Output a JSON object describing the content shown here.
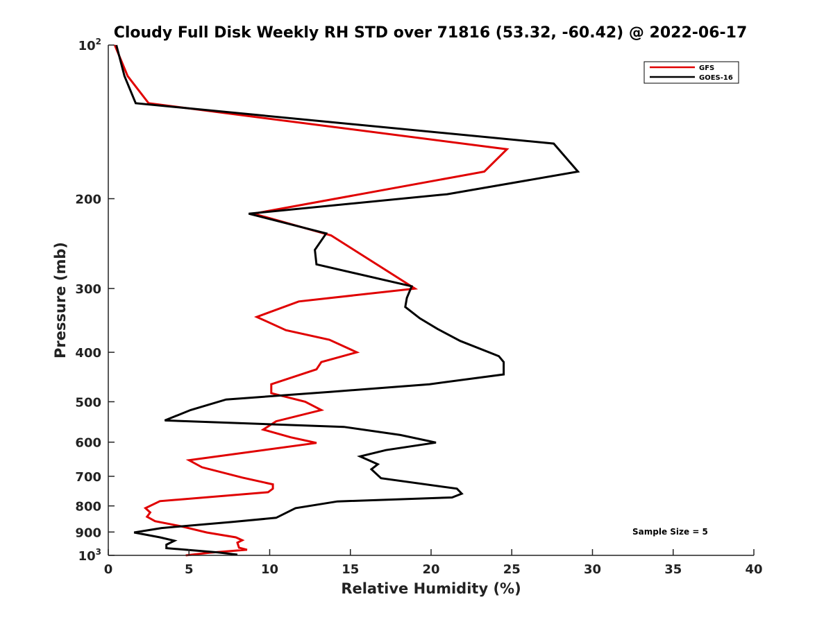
{
  "chart_data": {
    "type": "line",
    "title": "Cloudy Full Disk Weekly RH STD over 71816 (53.32, -60.42) @ 2022-06-17",
    "xlabel": "Relative Humidity (%)",
    "ylabel": "Pressure (mb)",
    "xlim": [
      0,
      40
    ],
    "ylim": [
      100,
      1000
    ],
    "y_scale": "log",
    "y_reversed": true,
    "x_ticks": [
      "0",
      "5",
      "10",
      "15",
      "20",
      "25",
      "30",
      "35",
      "40"
    ],
    "y_ticks": [
      {
        "value": 100,
        "base": "10",
        "exp": "2"
      },
      {
        "value": 200,
        "label": "200"
      },
      {
        "value": 300,
        "label": "300"
      },
      {
        "value": 400,
        "label": "400"
      },
      {
        "value": 500,
        "label": "500"
      },
      {
        "value": 600,
        "label": "600"
      },
      {
        "value": 700,
        "label": "700"
      },
      {
        "value": 800,
        "label": "800"
      },
      {
        "value": 900,
        "label": "900"
      },
      {
        "value": 1000,
        "base": "10",
        "exp": "3"
      }
    ],
    "legend_position": "top-right",
    "annotation": "Sample Size = 5",
    "grid": false,
    "series": [
      {
        "name": "GFS",
        "color": "#e00000",
        "points": [
          [
            0.4,
            100
          ],
          [
            1.2,
            115
          ],
          [
            2.5,
            130
          ],
          [
            24.7,
            160
          ],
          [
            23.3,
            177
          ],
          [
            9.0,
            214
          ],
          [
            13.8,
            236
          ],
          [
            19.0,
            300
          ],
          [
            11.8,
            318
          ],
          [
            9.2,
            341
          ],
          [
            11.0,
            362
          ],
          [
            13.7,
            378
          ],
          [
            15.4,
            400
          ],
          [
            13.2,
            418
          ],
          [
            12.9,
            432
          ],
          [
            10.1,
            462
          ],
          [
            10.1,
            481
          ],
          [
            12.2,
            500
          ],
          [
            13.2,
            519
          ],
          [
            10.4,
            546
          ],
          [
            9.6,
            567
          ],
          [
            11.3,
            587
          ],
          [
            12.9,
            602
          ],
          [
            5.0,
            651
          ],
          [
            5.8,
            672
          ],
          [
            8.3,
            704
          ],
          [
            10.2,
            726
          ],
          [
            10.2,
            740
          ],
          [
            9.9,
            752
          ],
          [
            3.2,
            783
          ],
          [
            2.3,
            808
          ],
          [
            2.6,
            824
          ],
          [
            2.4,
            840
          ],
          [
            2.9,
            857
          ],
          [
            4.5,
            877
          ],
          [
            6.1,
            902
          ],
          [
            7.9,
            922
          ],
          [
            8.3,
            934
          ],
          [
            8.0,
            944
          ],
          [
            8.1,
            966
          ],
          [
            8.6,
            975
          ],
          [
            6.3,
            988
          ],
          [
            4.8,
            1000
          ]
        ]
      },
      {
        "name": "GOES-16",
        "color": "#000000",
        "points": [
          [
            0.5,
            100
          ],
          [
            1.0,
            115
          ],
          [
            1.7,
            130
          ],
          [
            27.6,
            156
          ],
          [
            29.1,
            177
          ],
          [
            21.0,
            196
          ],
          [
            8.7,
            214
          ],
          [
            13.5,
            234
          ],
          [
            12.8,
            252
          ],
          [
            12.9,
            269
          ],
          [
            18.8,
            297
          ],
          [
            18.5,
            313
          ],
          [
            18.4,
            326
          ],
          [
            19.3,
            343
          ],
          [
            20.4,
            360
          ],
          [
            21.8,
            380
          ],
          [
            24.2,
            407
          ],
          [
            24.5,
            418
          ],
          [
            24.5,
            442
          ],
          [
            19.9,
            462
          ],
          [
            13.8,
            478
          ],
          [
            7.3,
            495
          ],
          [
            5.1,
            519
          ],
          [
            3.5,
            544
          ],
          [
            14.6,
            560
          ],
          [
            18.1,
            581
          ],
          [
            20.3,
            601
          ],
          [
            17.2,
            622
          ],
          [
            15.6,
            640
          ],
          [
            16.7,
            663
          ],
          [
            16.3,
            678
          ],
          [
            16.9,
            706
          ],
          [
            21.6,
            740
          ],
          [
            21.9,
            757
          ],
          [
            21.3,
            770
          ],
          [
            14.2,
            784
          ],
          [
            11.6,
            808
          ],
          [
            10.4,
            844
          ],
          [
            7.7,
            860
          ],
          [
            3.3,
            884
          ],
          [
            1.6,
            902
          ],
          [
            3.2,
            922
          ],
          [
            4.1,
            936
          ],
          [
            3.6,
            953
          ],
          [
            3.6,
            968
          ],
          [
            6.8,
            987
          ],
          [
            8.0,
            997
          ]
        ]
      }
    ]
  }
}
